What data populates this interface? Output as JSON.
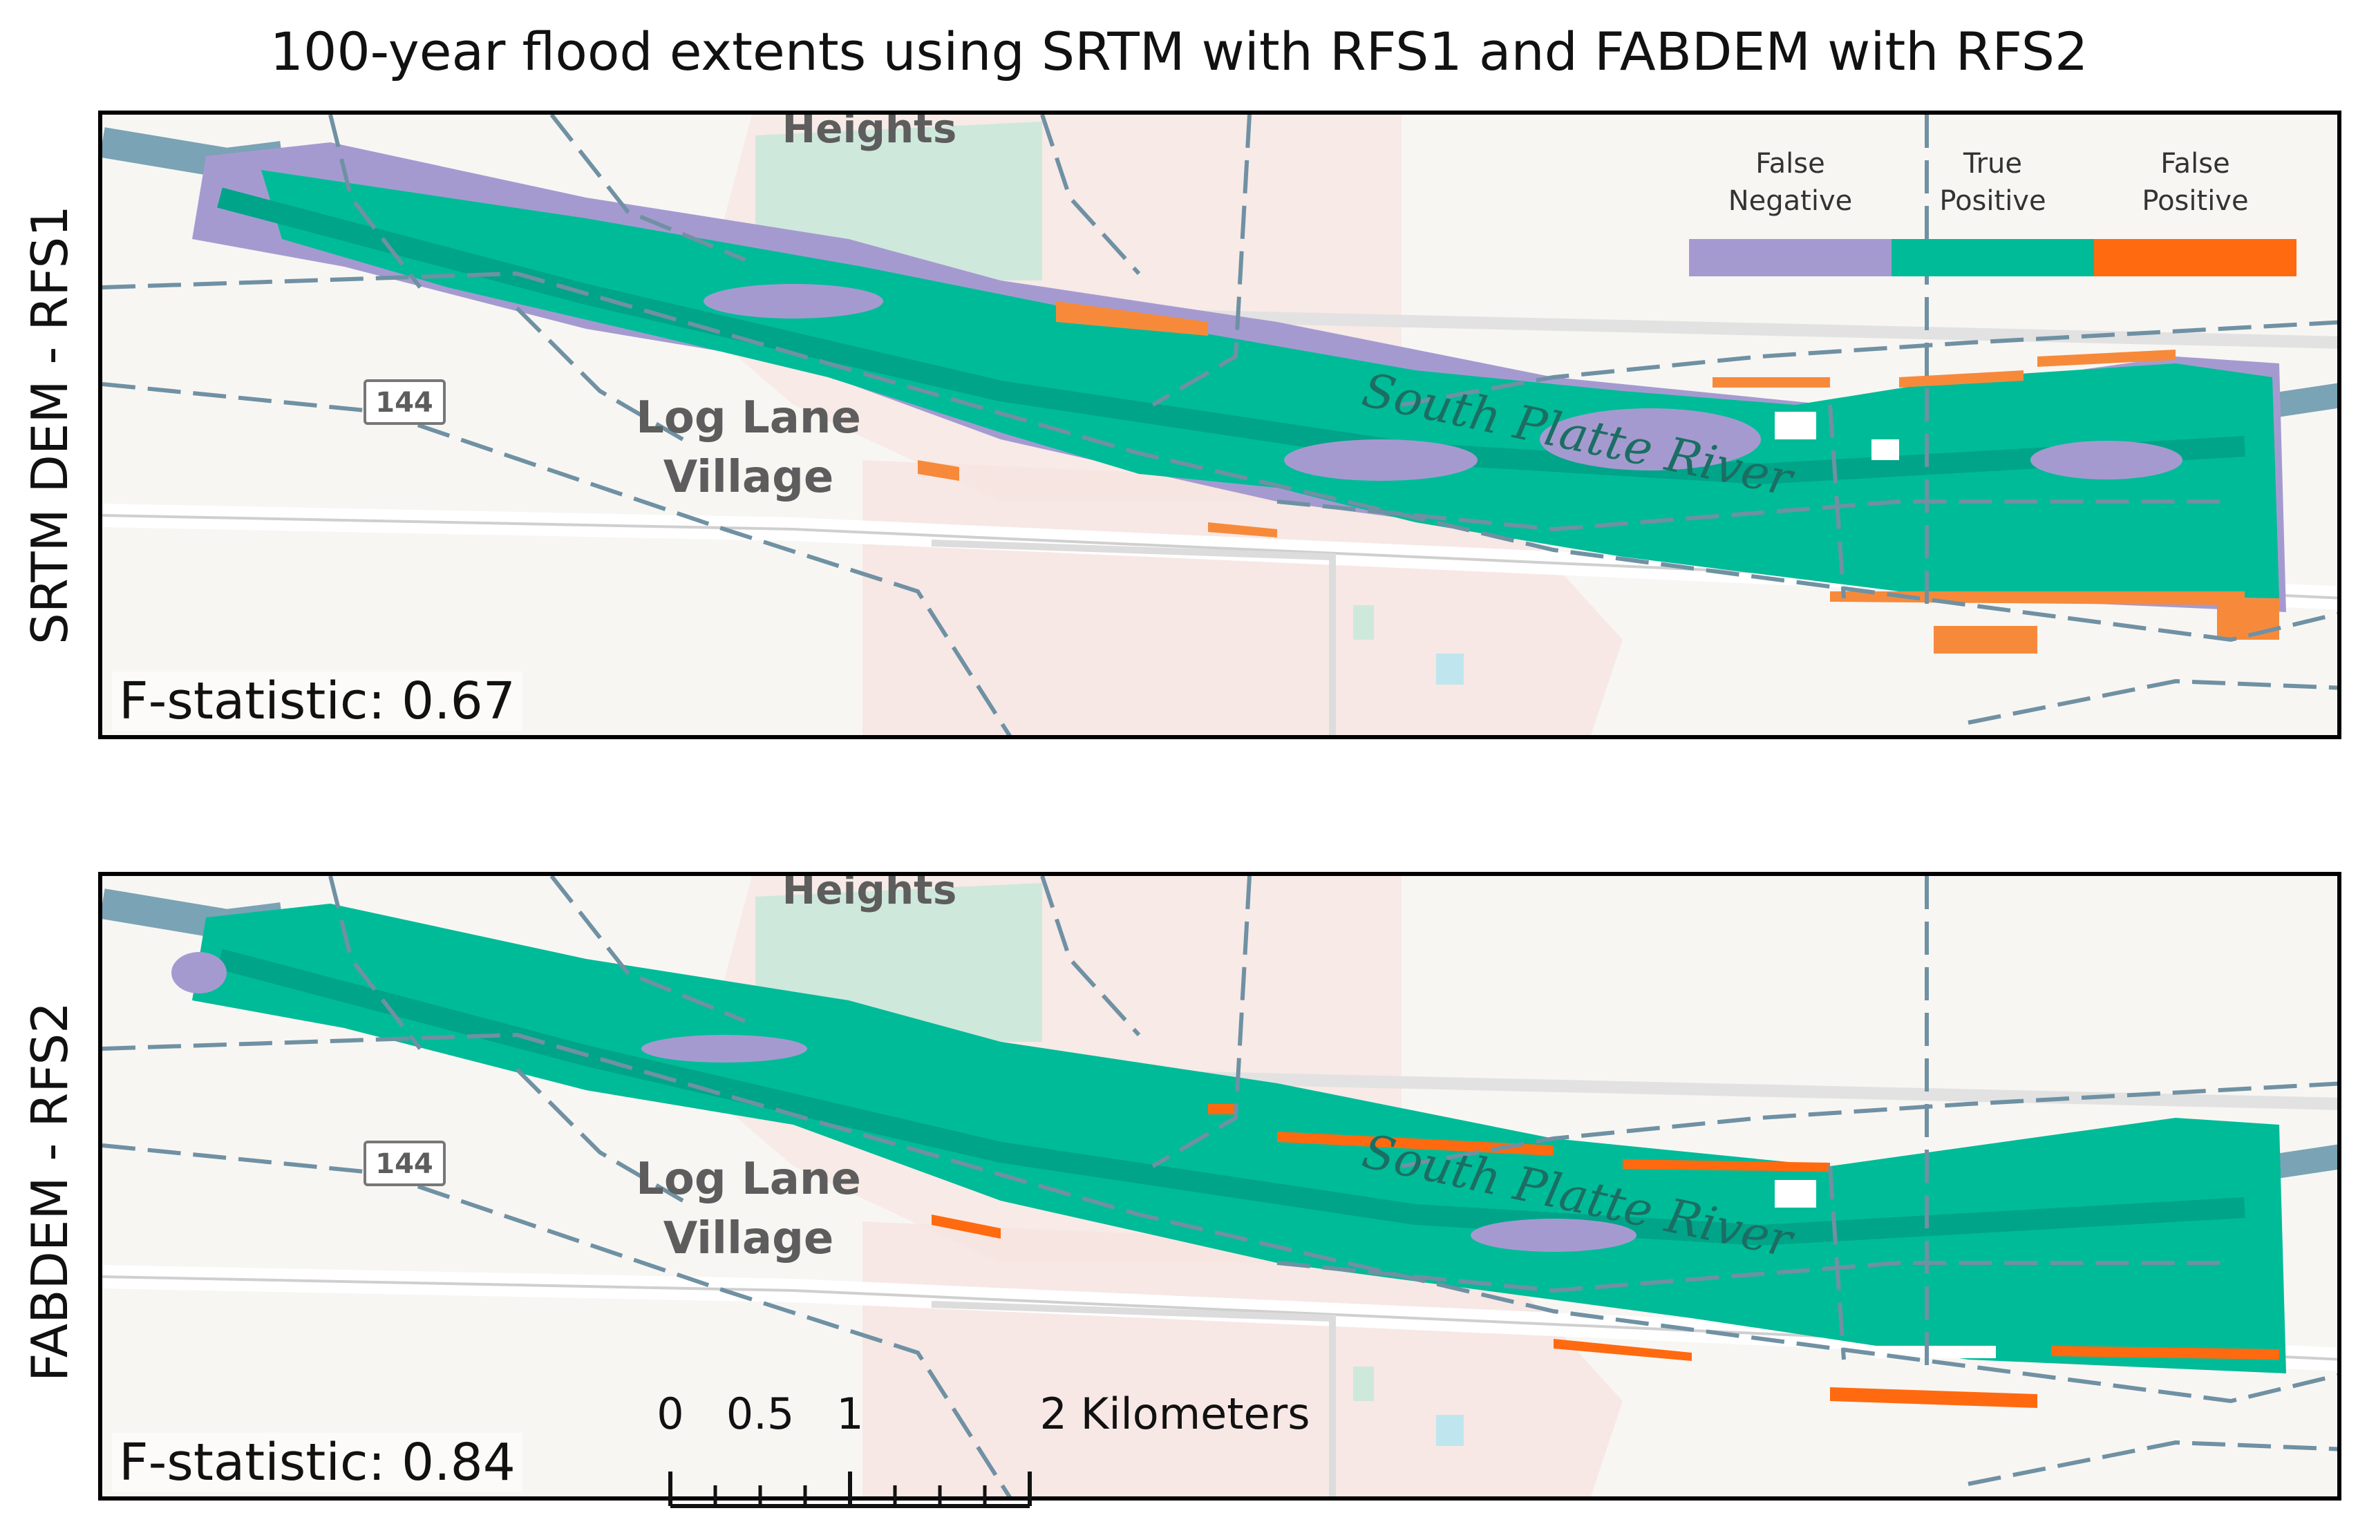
{
  "figure": {
    "title": "100-year flood extents using SRTM with RFS1 and FABDEM with RFS2"
  },
  "panels": [
    {
      "ylabel": "SRTM DEM - RFS1",
      "fstat": "F-statistic: 0.67"
    },
    {
      "ylabel": "FABDEM - RFS2",
      "fstat": "F-statistic: 0.84"
    }
  ],
  "basemap": {
    "labels": {
      "town": "Log Lane\nVillage",
      "town_line1": "Log Lane",
      "town_line2": "Village",
      "heights": "Heights",
      "river": "South Platte River",
      "road_shield": "144"
    }
  },
  "legend": {
    "items": [
      {
        "label": "False\nNegative",
        "color": "#a59ad0"
      },
      {
        "label": "True\nPositive",
        "color": "#00bb98"
      },
      {
        "label": "False\nPositive",
        "color": "#ff6a10"
      }
    ]
  },
  "colors": {
    "false_negative": "#a59ad0",
    "true_positive": "#00bb98",
    "false_positive": "#ff6a10",
    "false_positive_panel1": "#f78a3a",
    "river_channel": "#7aa3b5",
    "boundary": "#6f91a3",
    "park": "#cfe8dc",
    "urban": "#f7e3e0"
  },
  "scalebar": {
    "ticks": [
      "0",
      "0.5",
      "1",
      "2 Kilometers"
    ]
  }
}
